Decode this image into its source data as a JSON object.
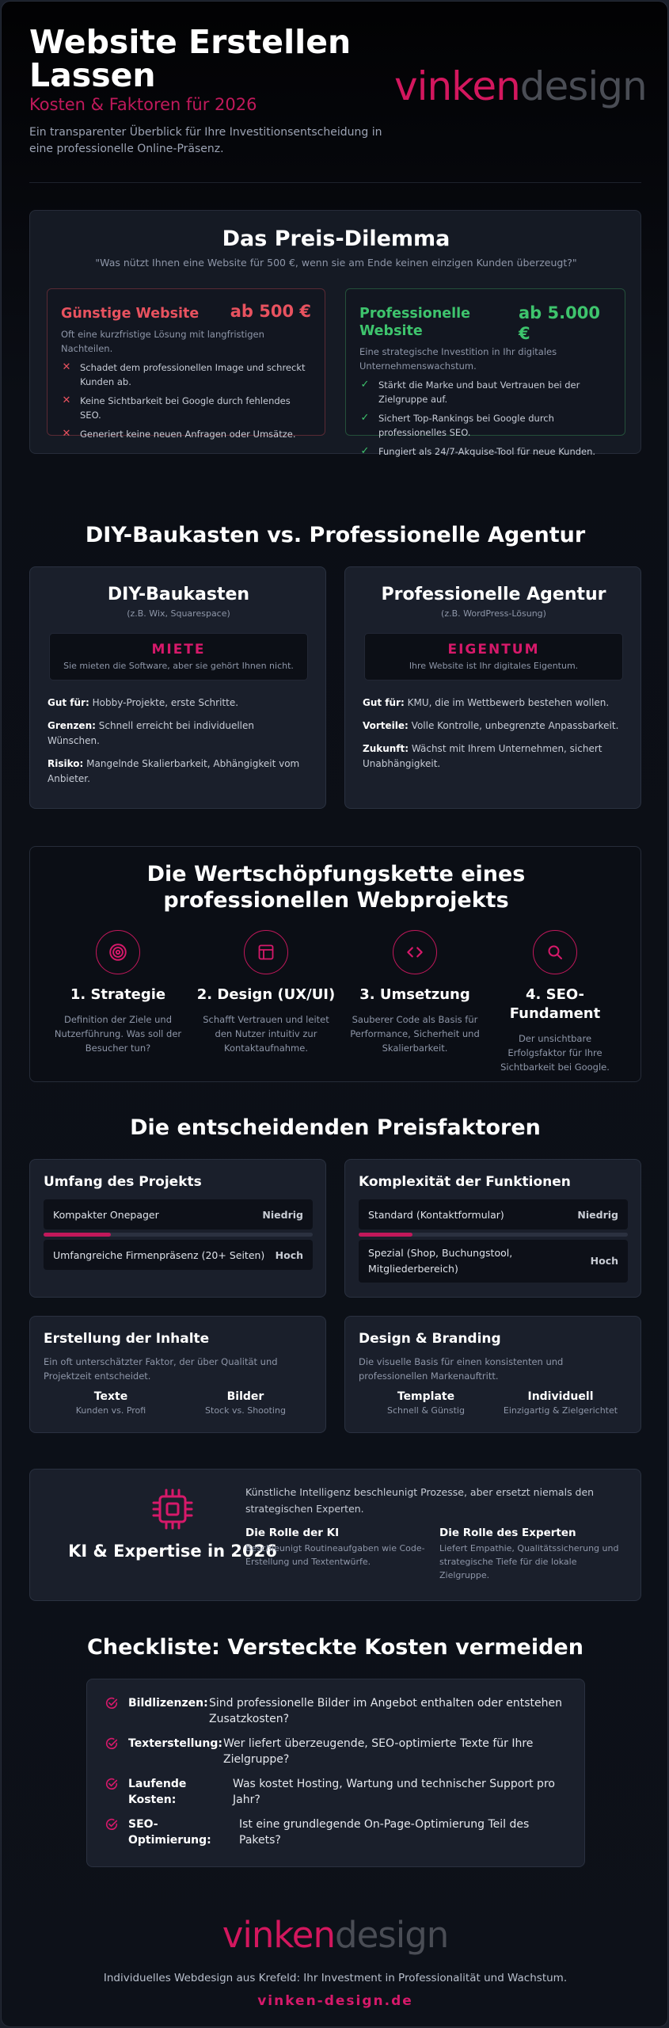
{
  "header": {
    "title": "Website Erstellen Lassen",
    "subtitle": "Kosten & Faktoren für 2026",
    "description": "Ein transparenter Überblick für Ihre Investitionsentscheidung in eine professionelle Online-Präsenz.",
    "logo_part1": "vinken",
    "logo_part2": "design"
  },
  "dilemma": {
    "title": "Das Preis-Dilemma",
    "quote": "\"Was nützt Ihnen eine Website für 500 €, wenn sie am Ende keinen einzigen Kunden überzeugt?\"",
    "cheap": {
      "title": "Günstige Website",
      "price": "ab 500 €",
      "desc": "Oft eine kurzfristige Lösung mit langfristigen Nachteilen.",
      "items": [
        "Schadet dem professionellen Image und schreckt Kunden ab.",
        "Keine Sichtbarkeit bei Google durch fehlendes SEO.",
        "Generiert keine neuen Anfragen oder Umsätze."
      ]
    },
    "pro": {
      "title": "Professionelle Website",
      "price": "ab 5.000 €",
      "desc": "Eine strategische Investition in Ihr digitales Unternehmenswachstum.",
      "items": [
        "Stärkt die Marke und baut Vertrauen bei der Zielgruppe auf.",
        "Sichert Top-Rankings bei Google durch professionelles SEO.",
        "Fungiert als 24/7-Akquise-Tool für neue Kunden."
      ]
    },
    "colors": {
      "red": "#e8525f",
      "green": "#3ec46d"
    }
  },
  "compare": {
    "title": "DIY-Baukasten vs. Professionelle Agentur",
    "diy": {
      "title": "DIY-Baukasten",
      "sub": "(z.B. Wix, Squarespace)",
      "pill_title": "MIETE",
      "pill_sub": "Sie mieten die Software, aber sie gehört Ihnen nicht.",
      "rows": [
        {
          "label": "Gut für:",
          "text": "Hobby-Projekte, erste Schritte."
        },
        {
          "label": "Grenzen:",
          "text": "Schnell erreicht bei individuellen Wünschen."
        },
        {
          "label": "Risiko:",
          "text": "Mangelnde Skalierbarkeit, Abhängigkeit vom Anbieter."
        }
      ]
    },
    "agency": {
      "title": "Professionelle Agentur",
      "sub": "(z.B. WordPress-Lösung)",
      "pill_title": "EIGENTUM",
      "pill_sub": "Ihre Website ist Ihr digitales Eigentum.",
      "rows": [
        {
          "label": "Gut für:",
          "text": "KMU, die im Wettbewerb bestehen wollen."
        },
        {
          "label": "Vorteile:",
          "text": "Volle Kontrolle, unbegrenzte Anpassbarkeit."
        },
        {
          "label": "Zukunft:",
          "text": "Wächst mit Ihrem Unternehmen, sichert Unabhängigkeit."
        }
      ]
    }
  },
  "chain": {
    "title": "Die Wertschöpfungskette eines professionellen Webprojekts",
    "steps": [
      {
        "icon": "target-icon",
        "title": "1. Strategie",
        "desc": "Definition der Ziele und Nutzerführung. Was soll der Besucher tun?"
      },
      {
        "icon": "layout-icon",
        "title": "2. Design (UX/UI)",
        "desc": "Schafft Vertrauen und leitet den Nutzer intuitiv zur Kontaktaufnahme."
      },
      {
        "icon": "code-icon",
        "title": "3. Umsetzung",
        "desc": "Sauberer Code als Basis für Performance, Sicherheit und Skalierbarkeit."
      },
      {
        "icon": "search-icon",
        "title": "4. SEO-Fundament",
        "desc": "Der unsichtbare Erfolgsfaktor für Ihre Sichtbarkeit bei Google."
      }
    ]
  },
  "factors": {
    "title": "Die entscheidenden Preisfaktoren",
    "scope": {
      "title": "Umfang des Projekts",
      "row1_label": "Kompakter Onepager",
      "row1_level": "Niedrig",
      "row2_label": "Umfangreiche Firmenpräsenz (20+ Seiten)",
      "row2_level": "Hoch",
      "bar_fraction": 0.25
    },
    "complexity": {
      "title": "Komplexität der Funktionen",
      "row1_label": "Standard (Kontaktformular)",
      "row1_level": "Niedrig",
      "row2_label": "Spezial (Shop, Buchungstool, Mitgliederbereich)",
      "row2_level": "Hoch",
      "bar_fraction": 0.2
    },
    "content": {
      "title": "Erstellung der Inhalte",
      "desc": "Ein oft unterschätzter Faktor, der über Qualität und Projektzeit entscheidet.",
      "col1_title": "Texte",
      "col1_sub": "Kunden vs. Profi",
      "col2_title": "Bilder",
      "col2_sub": "Stock vs. Shooting"
    },
    "branding": {
      "title": "Design & Branding",
      "desc": "Die visuelle Basis für einen konsistenten und professionellen Markenauftritt.",
      "col1_title": "Template",
      "col1_sub": "Schnell & Günstig",
      "col2_title": "Individuell",
      "col2_sub": "Einzigartig & Zielgerichtet"
    }
  },
  "ai": {
    "title": "KI & Expertise in 2026",
    "intro": "Künstliche Intelligenz beschleunigt Prozesse, aber ersetzt niemals den strategischen Experten.",
    "ki_title": "Die Rolle der KI",
    "ki_desc": "Beschleunigt Routineaufgaben wie Code-Erstellung und Textentwürfe.",
    "exp_title": "Die Rolle des Experten",
    "exp_desc": "Liefert Empathie, Qualitätssicherung und strategische Tiefe für die lokale Zielgruppe."
  },
  "checklist": {
    "title": "Checkliste: Versteckte Kosten vermeiden",
    "items": [
      {
        "label": "Bildlizenzen:",
        "text": "Sind professionelle Bilder im Angebot enthalten oder entstehen Zusatzkosten?"
      },
      {
        "label": "Texterstellung:",
        "text": "Wer liefert überzeugende, SEO-optimierte Texte für Ihre Zielgruppe?"
      },
      {
        "label": "Laufende Kosten:",
        "text": "Was kostet Hosting, Wartung und technischer Support pro Jahr?"
      },
      {
        "label": "SEO-Optimierung:",
        "text": "Ist eine grundlegende On-Page-Optimierung Teil des Pakets?"
      }
    ]
  },
  "footer": {
    "logo_part1": "vinken",
    "logo_part2": "design",
    "tagline": "Individuelles Webdesign aus Krefeld: Ihr Investment in Professionalität und Wachstum.",
    "url": "vinken-design.de"
  },
  "accent": "#d6196a"
}
